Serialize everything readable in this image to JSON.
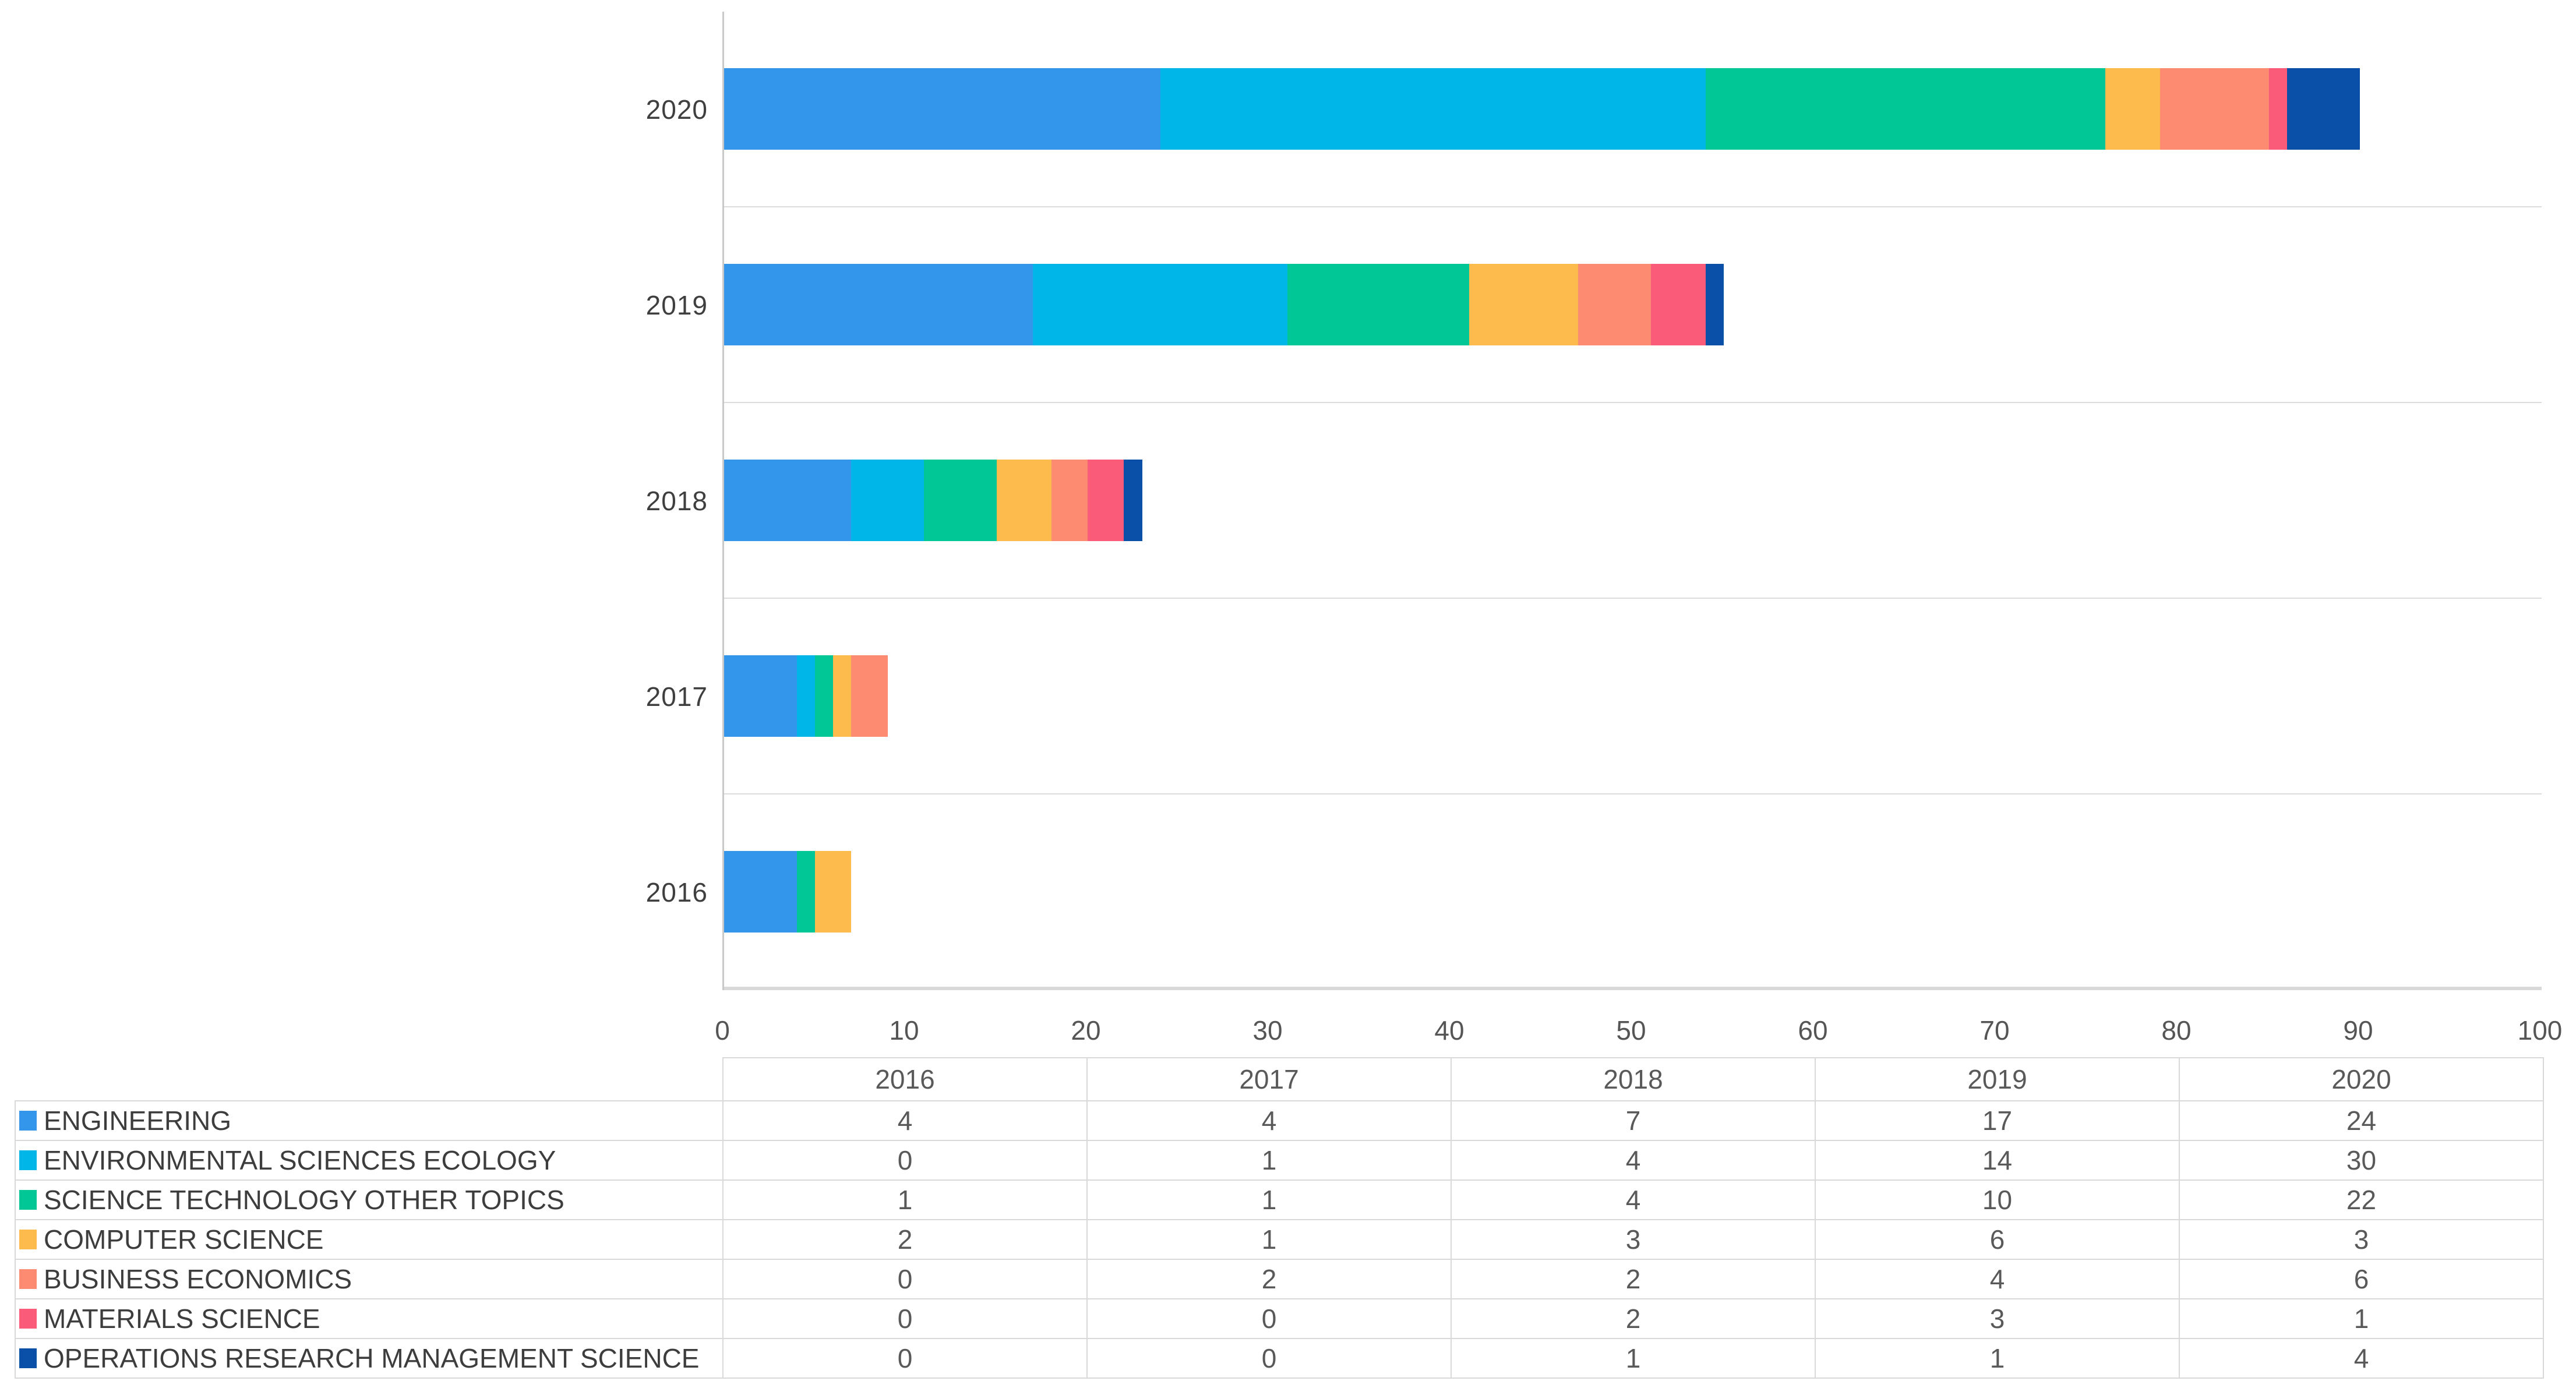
{
  "chart_data": {
    "type": "bar",
    "orientation": "horizontal-stacked",
    "title": "",
    "xlabel": "",
    "ylabel": "",
    "categories": [
      "2016",
      "2017",
      "2018",
      "2019",
      "2020"
    ],
    "categories_display_order_top_to_bottom": [
      "2020",
      "2019",
      "2018",
      "2017",
      "2016"
    ],
    "x_axis": {
      "min": 0,
      "max": 100,
      "tick_step": 10,
      "ticks": [
        0,
        10,
        20,
        30,
        40,
        50,
        60,
        70,
        80,
        90,
        100
      ]
    },
    "grid": "light horizontal band separator lines, light gray bottom axis",
    "legend_position": "data table below chart (swatches in first column)",
    "series": [
      {
        "name": "ENGINEERING",
        "color": "#3496EA",
        "values": [
          4,
          4,
          7,
          17,
          24
        ]
      },
      {
        "name": "ENVIRONMENTAL SCIENCES ECOLOGY",
        "color": "#00B5E7",
        "values": [
          0,
          1,
          4,
          14,
          30
        ]
      },
      {
        "name": "SCIENCE TECHNOLOGY OTHER TOPICS",
        "color": "#00C795",
        "values": [
          1,
          1,
          4,
          10,
          22
        ]
      },
      {
        "name": "COMPUTER SCIENCE",
        "color": "#FDBA4D",
        "values": [
          2,
          1,
          3,
          6,
          3
        ]
      },
      {
        "name": "BUSINESS ECONOMICS",
        "color": "#FC8B72",
        "values": [
          0,
          2,
          2,
          4,
          6
        ]
      },
      {
        "name": "MATERIALS SCIENCE",
        "color": "#FA5B78",
        "values": [
          0,
          0,
          2,
          3,
          1
        ]
      },
      {
        "name": "OPERATIONS RESEARCH MANAGEMENT SCIENCE",
        "color": "#0A50A8",
        "values": [
          0,
          0,
          1,
          1,
          4
        ]
      }
    ],
    "stack_totals_by_year": {
      "2016": 7,
      "2017": 9,
      "2018": 23,
      "2019": 55,
      "2020": 90
    }
  },
  "table": {
    "columns": [
      "",
      "2016",
      "2017",
      "2018",
      "2019",
      "2020"
    ],
    "rows": [
      {
        "label": "ENGINEERING",
        "color": "#3496EA",
        "values": [
          4,
          4,
          7,
          17,
          24
        ]
      },
      {
        "label": "ENVIRONMENTAL SCIENCES ECOLOGY",
        "color": "#00B5E7",
        "values": [
          0,
          1,
          4,
          14,
          30
        ]
      },
      {
        "label": "SCIENCE TECHNOLOGY OTHER TOPICS",
        "color": "#00C795",
        "values": [
          1,
          1,
          4,
          10,
          22
        ]
      },
      {
        "label": "COMPUTER SCIENCE",
        "color": "#FDBA4D",
        "values": [
          2,
          1,
          3,
          6,
          3
        ]
      },
      {
        "label": "BUSINESS ECONOMICS",
        "color": "#FC8B72",
        "values": [
          0,
          2,
          2,
          4,
          6
        ]
      },
      {
        "label": "MATERIALS SCIENCE",
        "color": "#FA5B78",
        "values": [
          0,
          0,
          2,
          3,
          1
        ]
      },
      {
        "label": "OPERATIONS RESEARCH MANAGEMENT SCIENCE",
        "color": "#0A50A8",
        "values": [
          0,
          0,
          1,
          1,
          4
        ]
      }
    ]
  },
  "style_colors": {
    "axis_line": "#c9c9c9",
    "gridline": "#dcdcdc",
    "table_border": "#d9d9d9",
    "text": "#595959"
  }
}
